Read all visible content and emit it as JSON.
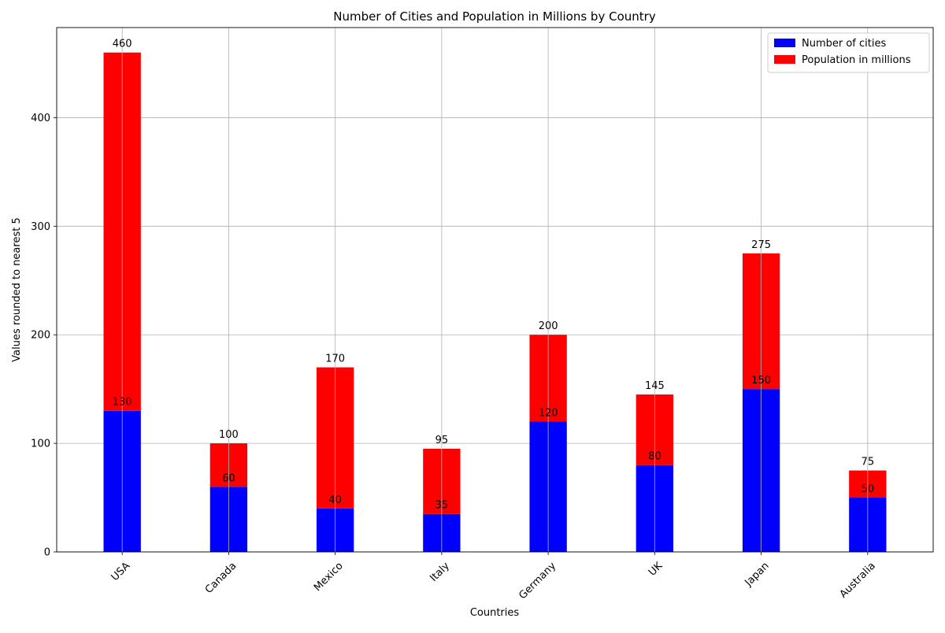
{
  "chart_data": {
    "type": "bar",
    "stacked": true,
    "title": "Number of Cities and Population in Millions by Country",
    "xlabel": "Countries",
    "ylabel": "Values rounded to nearest 5",
    "categories": [
      "USA",
      "Canada",
      "Mexico",
      "Italy",
      "Germany",
      "UK",
      "Japan",
      "Australia"
    ],
    "series": [
      {
        "name": "Number of cities",
        "color": "#0000ff",
        "values": [
          130,
          60,
          40,
          35,
          120,
          80,
          150,
          50
        ]
      },
      {
        "name": "Population in millions",
        "color": "#ff0000",
        "values": [
          330,
          40,
          130,
          60,
          80,
          65,
          125,
          25
        ]
      }
    ],
    "bottom_labels": [
      "130",
      "60",
      "40",
      "35",
      "120",
      "80",
      "150",
      "50"
    ],
    "total_labels": [
      "460",
      "100",
      "170",
      "95",
      "200",
      "145",
      "275",
      "75"
    ],
    "ylim": [
      0,
      483
    ],
    "yticks": [
      0,
      100,
      200,
      300,
      400
    ],
    "grid": true,
    "legend_position": "top-right"
  }
}
